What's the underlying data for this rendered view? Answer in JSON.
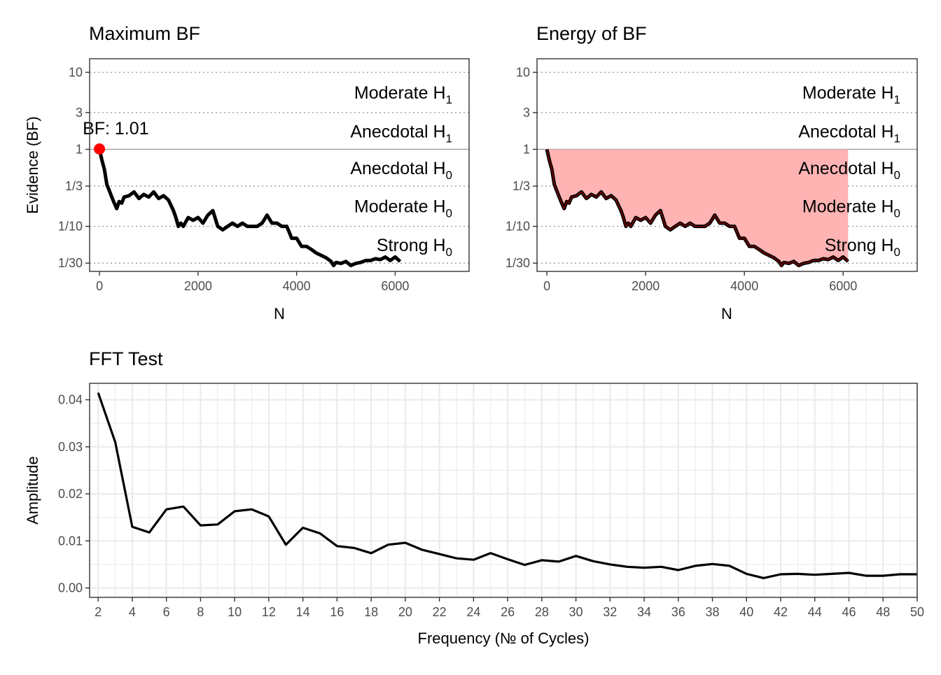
{
  "chart_data": [
    {
      "type": "line",
      "title": "Maximum BF",
      "xlabel": "N",
      "ylabel": "Evidence (BF)",
      "scale_y": "log",
      "xlim": [
        -200,
        7500
      ],
      "ylim": [
        0.026,
        15
      ],
      "x_ticks": [
        0,
        2000,
        4000,
        6000
      ],
      "x_tick_labels": [
        "0",
        "2000",
        "4000",
        "6000"
      ],
      "y_ticks": [
        0.0333,
        0.1,
        0.3333,
        1,
        3,
        10
      ],
      "y_tick_labels": [
        "1/30",
        "1/10",
        "1/3",
        "1",
        "3",
        "10"
      ],
      "zones": [
        {
          "label": "Moderate H",
          "sub": "1",
          "y": 5.48
        },
        {
          "label": "Anecdotal H",
          "sub": "1",
          "y": 1.73
        },
        {
          "label": "Anecdotal H",
          "sub": "0",
          "y": 0.577
        },
        {
          "label": "Moderate H",
          "sub": "0",
          "y": 0.183
        },
        {
          "label": "Strong H",
          "sub": "0",
          "y": 0.0577
        }
      ],
      "max_point": {
        "x": 0,
        "y": 1.01,
        "label": "BF: 1.01",
        "color": "#ff0000"
      },
      "series": [
        {
          "x": [
            0,
            50,
            100,
            150,
            200,
            250,
            300,
            350,
            400,
            450,
            500,
            600,
            700,
            800,
            900,
            1000,
            1100,
            1200,
            1300,
            1400,
            1500,
            1550,
            1600,
            1650,
            1700,
            1800,
            1900,
            2000,
            2100,
            2200,
            2300,
            2400,
            2500,
            2600,
            2700,
            2800,
            2900,
            3000,
            3100,
            3200,
            3300,
            3400,
            3500,
            3600,
            3700,
            3800,
            3900,
            4000,
            4100,
            4200,
            4300,
            4400,
            4500,
            4600,
            4700,
            4750,
            4800,
            4900,
            5000,
            5100,
            5200,
            5300,
            5400,
            5500,
            5600,
            5700,
            5800,
            5900,
            6000,
            6100
          ],
          "values": [
            1.0,
            0.72,
            0.55,
            0.35,
            0.29,
            0.24,
            0.2,
            0.17,
            0.21,
            0.2,
            0.24,
            0.25,
            0.28,
            0.23,
            0.26,
            0.24,
            0.28,
            0.23,
            0.25,
            0.22,
            0.16,
            0.13,
            0.1,
            0.11,
            0.1,
            0.13,
            0.12,
            0.13,
            0.11,
            0.14,
            0.16,
            0.1,
            0.09,
            0.1,
            0.11,
            0.1,
            0.11,
            0.1,
            0.1,
            0.1,
            0.11,
            0.14,
            0.11,
            0.11,
            0.1,
            0.1,
            0.07,
            0.07,
            0.055,
            0.055,
            0.05,
            0.045,
            0.042,
            0.039,
            0.035,
            0.031,
            0.034,
            0.033,
            0.035,
            0.031,
            0.033,
            0.034,
            0.036,
            0.036,
            0.038,
            0.037,
            0.04,
            0.036,
            0.04,
            0.035
          ]
        }
      ]
    },
    {
      "type": "area",
      "title": "Energy of BF",
      "xlabel": "N",
      "ylabel": "",
      "scale_y": "log",
      "xlim": [
        -200,
        7500
      ],
      "ylim": [
        0.026,
        15
      ],
      "x_ticks": [
        0,
        2000,
        4000,
        6000
      ],
      "x_tick_labels": [
        "0",
        "2000",
        "4000",
        "6000"
      ],
      "y_ticks": [
        0.0333,
        0.1,
        0.3333,
        1,
        3,
        10
      ],
      "y_tick_labels": [
        "1/30",
        "1/10",
        "1/3",
        "1",
        "3",
        "10"
      ],
      "zones": [
        {
          "label": "Moderate H",
          "sub": "1",
          "y": 5.48
        },
        {
          "label": "Anecdotal H",
          "sub": "1",
          "y": 1.73
        },
        {
          "label": "Anecdotal H",
          "sub": "0",
          "y": 0.577
        },
        {
          "label": "Moderate H",
          "sub": "0",
          "y": 0.183
        },
        {
          "label": "Strong H",
          "sub": "0",
          "y": 0.0577
        }
      ],
      "fill_color": "#ffb3b3",
      "fill_between": [
        1,
        "series"
      ],
      "series": [
        {
          "x": [
            0,
            50,
            100,
            150,
            200,
            250,
            300,
            350,
            400,
            450,
            500,
            600,
            700,
            800,
            900,
            1000,
            1100,
            1200,
            1300,
            1400,
            1500,
            1550,
            1600,
            1650,
            1700,
            1800,
            1900,
            2000,
            2100,
            2200,
            2300,
            2400,
            2500,
            2600,
            2700,
            2800,
            2900,
            3000,
            3100,
            3200,
            3300,
            3400,
            3500,
            3600,
            3700,
            3800,
            3900,
            4000,
            4100,
            4200,
            4300,
            4400,
            4500,
            4600,
            4700,
            4750,
            4800,
            4900,
            5000,
            5100,
            5200,
            5300,
            5400,
            5500,
            5600,
            5700,
            5800,
            5900,
            6000,
            6100
          ],
          "values": [
            1.0,
            0.72,
            0.55,
            0.35,
            0.29,
            0.24,
            0.2,
            0.17,
            0.21,
            0.2,
            0.24,
            0.25,
            0.28,
            0.23,
            0.26,
            0.24,
            0.28,
            0.23,
            0.25,
            0.22,
            0.16,
            0.13,
            0.1,
            0.11,
            0.1,
            0.13,
            0.12,
            0.13,
            0.11,
            0.14,
            0.16,
            0.1,
            0.09,
            0.1,
            0.11,
            0.1,
            0.11,
            0.1,
            0.1,
            0.1,
            0.11,
            0.14,
            0.11,
            0.11,
            0.1,
            0.1,
            0.07,
            0.07,
            0.055,
            0.055,
            0.05,
            0.045,
            0.042,
            0.039,
            0.035,
            0.031,
            0.034,
            0.033,
            0.035,
            0.031,
            0.033,
            0.034,
            0.036,
            0.036,
            0.038,
            0.037,
            0.04,
            0.036,
            0.04,
            0.035
          ]
        }
      ]
    },
    {
      "type": "line",
      "title": "FFT Test",
      "xlabel": "Frequency (№ of Cycles)",
      "ylabel": "Amplitude",
      "xlim": [
        1.5,
        50
      ],
      "ylim": [
        -0.002,
        0.0435
      ],
      "x_ticks": [
        2,
        4,
        6,
        8,
        10,
        12,
        14,
        16,
        18,
        20,
        22,
        24,
        26,
        28,
        30,
        32,
        34,
        36,
        38,
        40,
        42,
        44,
        46,
        48,
        50
      ],
      "x_tick_labels": [
        "2",
        "4",
        "6",
        "8",
        "10",
        "12",
        "14",
        "16",
        "18",
        "20",
        "22",
        "24",
        "26",
        "28",
        "30",
        "32",
        "34",
        "36",
        "38",
        "40",
        "42",
        "44",
        "46",
        "48",
        "50"
      ],
      "y_ticks": [
        0,
        0.01,
        0.02,
        0.03,
        0.04
      ],
      "y_tick_labels": [
        "0.00",
        "0.01",
        "0.02",
        "0.03",
        "0.04"
      ],
      "grid": true,
      "series": [
        {
          "x": [
            2,
            3,
            4,
            5,
            6,
            7,
            8,
            9,
            10,
            11,
            12,
            13,
            14,
            15,
            16,
            17,
            18,
            19,
            20,
            21,
            22,
            23,
            24,
            25,
            26,
            27,
            28,
            29,
            30,
            31,
            32,
            33,
            34,
            35,
            36,
            37,
            38,
            39,
            40,
            41,
            42,
            43,
            44,
            45,
            46,
            47,
            48,
            49,
            50
          ],
          "values": [
            0.0415,
            0.031,
            0.013,
            0.0118,
            0.0167,
            0.0173,
            0.0133,
            0.0135,
            0.0163,
            0.0167,
            0.0152,
            0.0092,
            0.0128,
            0.0116,
            0.0089,
            0.0085,
            0.0074,
            0.0092,
            0.0096,
            0.0081,
            0.0072,
            0.0063,
            0.006,
            0.0074,
            0.0061,
            0.0049,
            0.0059,
            0.0056,
            0.0068,
            0.0057,
            0.005,
            0.0045,
            0.0043,
            0.0045,
            0.0038,
            0.0047,
            0.0051,
            0.0047,
            0.003,
            0.0021,
            0.0029,
            0.003,
            0.0028,
            0.003,
            0.0032,
            0.0026,
            0.0026,
            0.0029,
            0.0029
          ]
        }
      ]
    }
  ]
}
